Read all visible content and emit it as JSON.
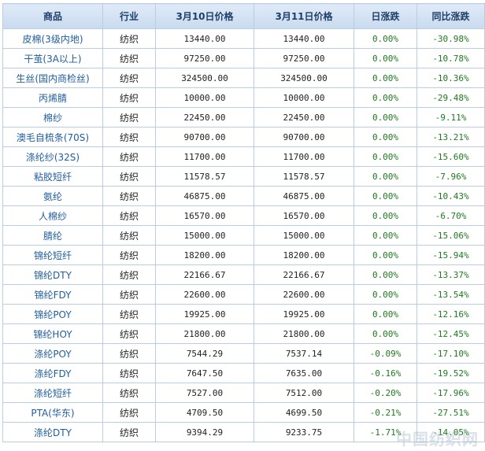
{
  "table": {
    "headers": [
      "商品",
      "行业",
      "3月10日价格",
      "3月11日价格",
      "日涨跌",
      "同比涨跌"
    ],
    "rows": [
      {
        "name": "皮棉(3级内地)",
        "industry": "纺织",
        "price_mar10": "13440.00",
        "price_mar11": "13440.00",
        "daily_change": "0.00%",
        "yoy_change": "-30.98%"
      },
      {
        "name": "干茧(3A以上)",
        "industry": "纺织",
        "price_mar10": "97250.00",
        "price_mar11": "97250.00",
        "daily_change": "0.00%",
        "yoy_change": "-10.78%"
      },
      {
        "name": "生丝(国内商检丝)",
        "industry": "纺织",
        "price_mar10": "324500.00",
        "price_mar11": "324500.00",
        "daily_change": "0.00%",
        "yoy_change": "-10.36%"
      },
      {
        "name": "丙烯腈",
        "industry": "纺织",
        "price_mar10": "10000.00",
        "price_mar11": "10000.00",
        "daily_change": "0.00%",
        "yoy_change": "-29.48%"
      },
      {
        "name": "棉纱",
        "industry": "纺织",
        "price_mar10": "22450.00",
        "price_mar11": "22450.00",
        "daily_change": "0.00%",
        "yoy_change": "-9.11%"
      },
      {
        "name": "澳毛自梳条(70S)",
        "industry": "纺织",
        "price_mar10": "90700.00",
        "price_mar11": "90700.00",
        "daily_change": "0.00%",
        "yoy_change": "-13.21%"
      },
      {
        "name": "涤纶纱(32S)",
        "industry": "纺织",
        "price_mar10": "11700.00",
        "price_mar11": "11700.00",
        "daily_change": "0.00%",
        "yoy_change": "-15.60%"
      },
      {
        "name": "粘胶短纤",
        "industry": "纺织",
        "price_mar10": "11578.57",
        "price_mar11": "11578.57",
        "daily_change": "0.00%",
        "yoy_change": "-7.96%"
      },
      {
        "name": "氨纶",
        "industry": "纺织",
        "price_mar10": "46875.00",
        "price_mar11": "46875.00",
        "daily_change": "0.00%",
        "yoy_change": "-10.43%"
      },
      {
        "name": "人棉纱",
        "industry": "纺织",
        "price_mar10": "16570.00",
        "price_mar11": "16570.00",
        "daily_change": "0.00%",
        "yoy_change": "-6.70%"
      },
      {
        "name": "腈纶",
        "industry": "纺织",
        "price_mar10": "15000.00",
        "price_mar11": "15000.00",
        "daily_change": "0.00%",
        "yoy_change": "-15.06%"
      },
      {
        "name": "锦纶短纤",
        "industry": "纺织",
        "price_mar10": "18200.00",
        "price_mar11": "18200.00",
        "daily_change": "0.00%",
        "yoy_change": "-15.94%"
      },
      {
        "name": "锦纶DTY",
        "industry": "纺织",
        "price_mar10": "22166.67",
        "price_mar11": "22166.67",
        "daily_change": "0.00%",
        "yoy_change": "-13.37%"
      },
      {
        "name": "锦纶FDY",
        "industry": "纺织",
        "price_mar10": "22600.00",
        "price_mar11": "22600.00",
        "daily_change": "0.00%",
        "yoy_change": "-13.54%"
      },
      {
        "name": "锦纶POY",
        "industry": "纺织",
        "price_mar10": "19925.00",
        "price_mar11": "19925.00",
        "daily_change": "0.00%",
        "yoy_change": "-12.16%"
      },
      {
        "name": "锦纶HOY",
        "industry": "纺织",
        "price_mar10": "21800.00",
        "price_mar11": "21800.00",
        "daily_change": "0.00%",
        "yoy_change": "-12.45%"
      },
      {
        "name": "涤纶POY",
        "industry": "纺织",
        "price_mar10": "7544.29",
        "price_mar11": "7537.14",
        "daily_change": "-0.09%",
        "yoy_change": "-17.10%"
      },
      {
        "name": "涤纶FDY",
        "industry": "纺织",
        "price_mar10": "7647.50",
        "price_mar11": "7635.00",
        "daily_change": "-0.16%",
        "yoy_change": "-19.52%"
      },
      {
        "name": "涤纶短纤",
        "industry": "纺织",
        "price_mar10": "7527.00",
        "price_mar11": "7512.00",
        "daily_change": "-0.20%",
        "yoy_change": "-17.96%"
      },
      {
        "name": "PTA(华东)",
        "industry": "纺织",
        "price_mar10": "4709.50",
        "price_mar11": "4699.50",
        "daily_change": "-0.21%",
        "yoy_change": "-27.51%"
      },
      {
        "name": "涤纶DTY",
        "industry": "纺织",
        "price_mar10": "9394.29",
        "price_mar11": "9233.75",
        "daily_change": "-1.71%",
        "yoy_change": "-14.05%"
      }
    ]
  },
  "watermark": "中国纺织网",
  "colors": {
    "header_bg": "#c9dbef",
    "border": "#b9cde3",
    "name_text": "#1f5d9e",
    "change_text": "#1f7a1f"
  }
}
